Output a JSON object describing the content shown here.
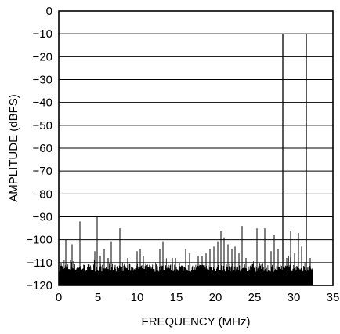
{
  "chart_data": {
    "type": "line",
    "title": "",
    "xlabel": "FREQUENCY (MHz)",
    "ylabel": "AMPLITUDE (dBFS)",
    "xlim": [
      0,
      35
    ],
    "ylim": [
      -120,
      0
    ],
    "x_ticks": [
      "0",
      "5",
      "10",
      "15",
      "20",
      "25",
      "30",
      "35"
    ],
    "y_ticks": [
      "0",
      "−10",
      "−20",
      "−30",
      "−40",
      "−50",
      "−60",
      "−70",
      "−80",
      "−90",
      "−100",
      "−110",
      "−120"
    ],
    "grid": true,
    "noise_floor": -115,
    "freq_max": 32.5,
    "main_tones": [
      {
        "x": 28.6,
        "y": -10
      },
      {
        "x": 31.6,
        "y": -10
      }
    ],
    "spurs": [
      {
        "x": 0.3,
        "y": -110
      },
      {
        "x": 0.9,
        "y": -100
      },
      {
        "x": 1.5,
        "y": -109
      },
      {
        "x": 1.7,
        "y": -102
      },
      {
        "x": 2.7,
        "y": -92
      },
      {
        "x": 3.3,
        "y": -111
      },
      {
        "x": 4.6,
        "y": -105
      },
      {
        "x": 4.9,
        "y": -90
      },
      {
        "x": 5.3,
        "y": -107
      },
      {
        "x": 5.8,
        "y": -104
      },
      {
        "x": 6.3,
        "y": -108
      },
      {
        "x": 6.7,
        "y": -101
      },
      {
        "x": 7.2,
        "y": -111
      },
      {
        "x": 7.8,
        "y": -95
      },
      {
        "x": 8.3,
        "y": -112
      },
      {
        "x": 8.8,
        "y": -108
      },
      {
        "x": 9.6,
        "y": -113
      },
      {
        "x": 10.0,
        "y": -105
      },
      {
        "x": 10.4,
        "y": -104
      },
      {
        "x": 10.8,
        "y": -107
      },
      {
        "x": 11.9,
        "y": -113
      },
      {
        "x": 12.4,
        "y": -112
      },
      {
        "x": 12.9,
        "y": -104
      },
      {
        "x": 13.3,
        "y": -101
      },
      {
        "x": 14.0,
        "y": -111
      },
      {
        "x": 14.5,
        "y": -108
      },
      {
        "x": 14.9,
        "y": -108
      },
      {
        "x": 15.4,
        "y": -110
      },
      {
        "x": 16.2,
        "y": -104
      },
      {
        "x": 16.7,
        "y": -106
      },
      {
        "x": 17.3,
        "y": -112
      },
      {
        "x": 17.8,
        "y": -107
      },
      {
        "x": 18.3,
        "y": -107
      },
      {
        "x": 18.8,
        "y": -106
      },
      {
        "x": 19.3,
        "y": -104
      },
      {
        "x": 19.8,
        "y": -103
      },
      {
        "x": 20.3,
        "y": -101
      },
      {
        "x": 20.7,
        "y": -96
      },
      {
        "x": 21.1,
        "y": -99
      },
      {
        "x": 21.6,
        "y": -102
      },
      {
        "x": 22.1,
        "y": -104
      },
      {
        "x": 22.5,
        "y": -103
      },
      {
        "x": 23.0,
        "y": -106
      },
      {
        "x": 23.4,
        "y": -94
      },
      {
        "x": 23.9,
        "y": -108
      },
      {
        "x": 24.6,
        "y": -112
      },
      {
        "x": 25.3,
        "y": -95
      },
      {
        "x": 25.8,
        "y": -111
      },
      {
        "x": 26.3,
        "y": -95
      },
      {
        "x": 27.1,
        "y": -105
      },
      {
        "x": 27.5,
        "y": -98
      },
      {
        "x": 28.0,
        "y": -104
      },
      {
        "x": 29.1,
        "y": -108
      },
      {
        "x": 29.6,
        "y": -96
      },
      {
        "x": 30.1,
        "y": -106
      },
      {
        "x": 30.6,
        "y": -97
      },
      {
        "x": 31.0,
        "y": -103
      },
      {
        "x": 32.1,
        "y": -108
      }
    ]
  }
}
